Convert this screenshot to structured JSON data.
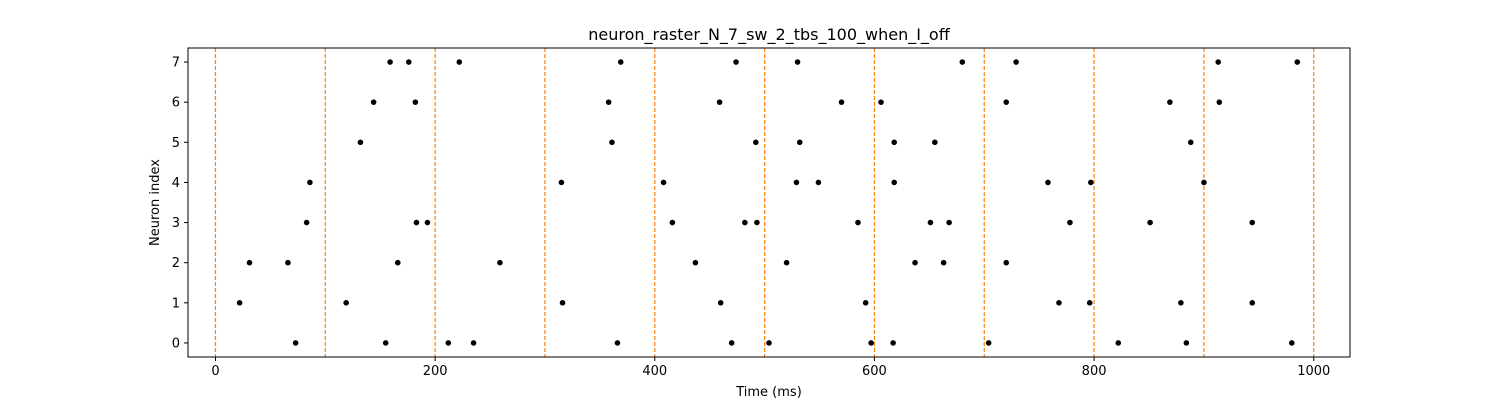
{
  "chart_data": {
    "type": "scatter",
    "title": "neuron_raster_N_7_sw_2_tbs_100_when_I_off",
    "xlabel": "Time (ms)",
    "ylabel": "Neuron index",
    "xlim": [
      -25,
      1033
    ],
    "ylim": [
      -0.35,
      7.35
    ],
    "xticks": [
      0,
      200,
      400,
      600,
      800,
      1000
    ],
    "xtick_labels": [
      "0",
      "200",
      "400",
      "600",
      "800",
      "1000"
    ],
    "yticks": [
      0,
      1,
      2,
      3,
      4,
      5,
      6,
      7
    ],
    "ytick_labels": [
      "0",
      "1",
      "2",
      "3",
      "4",
      "5",
      "6",
      "7"
    ],
    "grid": false,
    "vlines": [
      0,
      100,
      200,
      300,
      400,
      500,
      600,
      700,
      800,
      900,
      1000
    ],
    "vline_color": "#ff7f0e",
    "point_color": "#000000",
    "series": [
      {
        "points": [
          [
            22,
            1
          ],
          [
            31,
            2
          ],
          [
            66,
            2
          ],
          [
            73,
            0
          ],
          [
            83,
            3
          ],
          [
            86,
            4
          ],
          [
            119,
            1
          ],
          [
            132,
            5
          ],
          [
            144,
            6
          ],
          [
            155,
            0
          ],
          [
            159,
            7
          ],
          [
            166,
            2
          ],
          [
            176,
            7
          ],
          [
            182,
            6
          ],
          [
            183,
            3
          ],
          [
            193,
            3
          ],
          [
            212,
            0
          ],
          [
            222,
            7
          ],
          [
            235,
            0
          ],
          [
            259,
            2
          ],
          [
            315,
            4
          ],
          [
            316,
            1
          ],
          [
            358,
            6
          ],
          [
            361,
            5
          ],
          [
            366,
            0
          ],
          [
            369,
            7
          ],
          [
            408,
            4
          ],
          [
            416,
            3
          ],
          [
            437,
            2
          ],
          [
            459,
            6
          ],
          [
            460,
            1
          ],
          [
            470,
            0
          ],
          [
            474,
            7
          ],
          [
            482,
            3
          ],
          [
            492,
            5
          ],
          [
            493,
            3
          ],
          [
            504,
            0
          ],
          [
            520,
            2
          ],
          [
            529,
            4
          ],
          [
            530,
            7
          ],
          [
            532,
            5
          ],
          [
            549,
            4
          ],
          [
            570,
            6
          ],
          [
            585,
            3
          ],
          [
            592,
            1
          ],
          [
            597,
            0
          ],
          [
            606,
            6
          ],
          [
            617,
            0
          ],
          [
            618,
            4
          ],
          [
            618,
            5
          ],
          [
            637,
            2
          ],
          [
            651,
            3
          ],
          [
            655,
            5
          ],
          [
            663,
            2
          ],
          [
            668,
            3
          ],
          [
            680,
            7
          ],
          [
            704,
            0
          ],
          [
            720,
            2
          ],
          [
            720,
            6
          ],
          [
            729,
            7
          ],
          [
            758,
            4
          ],
          [
            768,
            1
          ],
          [
            778,
            3
          ],
          [
            796,
            1
          ],
          [
            797,
            4
          ],
          [
            822,
            0
          ],
          [
            851,
            3
          ],
          [
            869,
            6
          ],
          [
            879,
            1
          ],
          [
            884,
            0
          ],
          [
            888,
            5
          ],
          [
            900,
            4
          ],
          [
            913,
            7
          ],
          [
            914,
            6
          ],
          [
            944,
            3
          ],
          [
            944,
            1
          ],
          [
            980,
            0
          ],
          [
            985,
            7
          ]
        ]
      }
    ]
  }
}
